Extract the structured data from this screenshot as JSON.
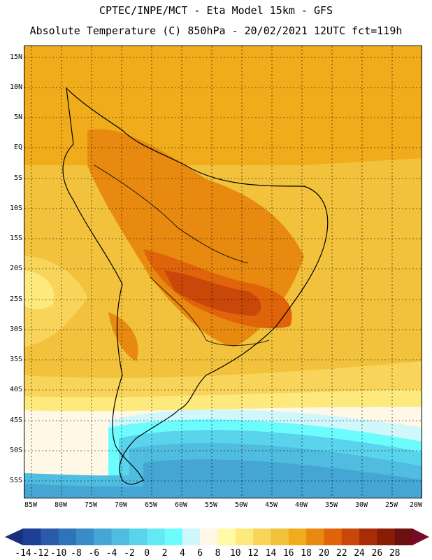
{
  "header": {
    "line1": "CPTEC/INPE/MCT -  Eta Model 15km - GFS",
    "line2": "Absolute Temperature (C) 850hPa - 20/02/2021 12UTC fct=119h"
  },
  "map": {
    "lat_labels": [
      "15N",
      "10N",
      "5N",
      "EQ",
      "5S",
      "10S",
      "15S",
      "20S",
      "25S",
      "30S",
      "35S",
      "40S",
      "45S",
      "50S",
      "55S"
    ],
    "lon_labels": [
      "85W",
      "80W",
      "75W",
      "70W",
      "65W",
      "60W",
      "55W",
      "50W",
      "45W",
      "40W",
      "35W",
      "30W",
      "25W",
      "20W"
    ]
  },
  "colorbar": {
    "labels": [
      "-14",
      "-12",
      "-10",
      "-8",
      "-6",
      "-4",
      "-2",
      "0",
      "2",
      "4",
      "6",
      "8",
      "10",
      "12",
      "14",
      "16",
      "18",
      "20",
      "22",
      "24",
      "26",
      "28"
    ],
    "colors": [
      "#1d3f96",
      "#2a5aa8",
      "#2f74b8",
      "#3b8cc6",
      "#45a6d4",
      "#4fbce0",
      "#5ad3ec",
      "#63e8f5",
      "#6cfcfe",
      "#d0f7fc",
      "#fff8e6",
      "#fff9a8",
      "#fde97c",
      "#f8d55a",
      "#f2c23c",
      "#f0ac1a",
      "#e88a10",
      "#e0640a",
      "#c94708",
      "#a82d06",
      "#8a1c06",
      "#6b1010"
    ],
    "low_color": "#1a2f7a",
    "high_color": "#7a0a2a"
  }
}
